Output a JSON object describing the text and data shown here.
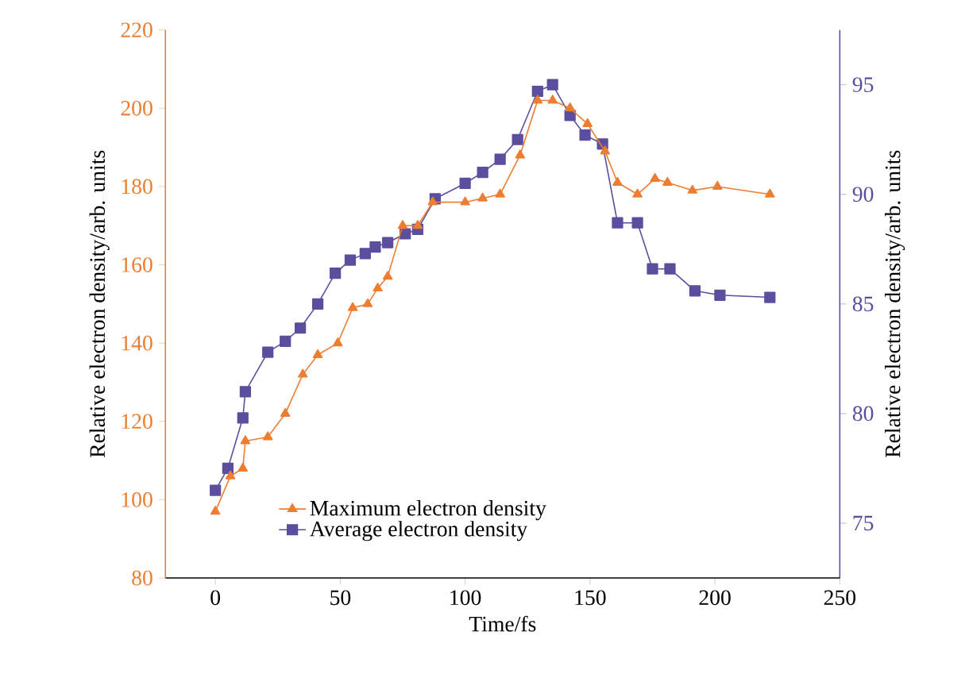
{
  "chart_data": {
    "type": "line",
    "xlabel": "Time/fs",
    "ylabel": "Relative electron density/arb. units",
    "y2label": "Relative electron density/arb. units",
    "xlim": [
      -20,
      250
    ],
    "xticks": [
      0,
      50,
      100,
      150,
      200,
      250
    ],
    "ylim": [
      80,
      220
    ],
    "yticks": [
      80,
      100,
      120,
      140,
      160,
      180,
      200,
      220
    ],
    "y2lim": [
      72.5,
      97.5
    ],
    "y2ticks": [
      75,
      80,
      85,
      90,
      95
    ],
    "legend": "bottom",
    "grid": false,
    "series": [
      {
        "name": "Maximum electron density",
        "color": "#ed7d31",
        "marker": "triangle",
        "x": [
          0,
          6,
          11,
          12,
          21,
          28,
          35,
          41,
          49,
          55,
          61,
          65,
          69,
          75,
          81,
          87,
          100,
          107,
          114,
          122,
          129,
          135,
          142,
          149,
          156,
          161,
          169,
          176,
          181,
          191,
          201,
          222
        ],
        "values": [
          97,
          106,
          108,
          115,
          116,
          122,
          132,
          137,
          140,
          149,
          150,
          154,
          157,
          170,
          170,
          176,
          176,
          177,
          178,
          188,
          202,
          202,
          200,
          196,
          189,
          181,
          178,
          182,
          181,
          179,
          180,
          178
        ]
      },
      {
        "name": "Average electron density",
        "color": "#5b4e9e",
        "marker": "square",
        "axis": "y2",
        "x": [
          0,
          5,
          11,
          12,
          21,
          28,
          34,
          41,
          48,
          54,
          60,
          64,
          69,
          76,
          81,
          88,
          100,
          107,
          114,
          121,
          129,
          135,
          142,
          148,
          155,
          161,
          169,
          175,
          182,
          192,
          202,
          222
        ],
        "values": [
          76.5,
          77.5,
          79.8,
          81,
          82.8,
          83.3,
          83.9,
          85,
          86.4,
          87,
          87.3,
          87.6,
          87.8,
          88.2,
          88.4,
          89.8,
          90.5,
          91,
          91.6,
          92.5,
          94.7,
          95,
          93.6,
          92.7,
          92.3,
          88.7,
          88.7,
          86.6,
          86.6,
          85.6,
          85.4,
          85.3
        ]
      }
    ]
  }
}
